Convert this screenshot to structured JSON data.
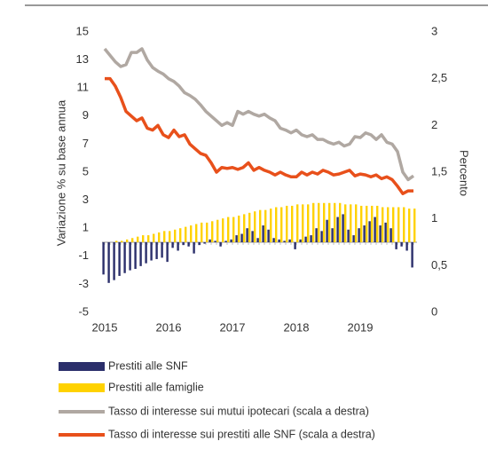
{
  "chart_data": {
    "type": "bar",
    "y_label": "Variazione % su base annua",
    "y2_label": "Percento",
    "categories": [
      "2015",
      null,
      null,
      null,
      null,
      null,
      null,
      null,
      null,
      null,
      null,
      null,
      "2016",
      null,
      null,
      null,
      null,
      null,
      null,
      null,
      null,
      null,
      null,
      null,
      "2017",
      null,
      null,
      null,
      null,
      null,
      null,
      null,
      null,
      null,
      null,
      null,
      "2018",
      null,
      null,
      null,
      null,
      null,
      null,
      null,
      null,
      null,
      null,
      null,
      "2019",
      null,
      null,
      null,
      null,
      null,
      null,
      null,
      null,
      null,
      null
    ],
    "ylim": [
      -5,
      15
    ],
    "yticks": [
      -5,
      -3,
      -1,
      1,
      3,
      5,
      7,
      9,
      11,
      13,
      15
    ],
    "y2lim": [
      0,
      3
    ],
    "y2ticks": [
      0,
      {
        "value": 0.5,
        "label": "0,5"
      },
      1,
      {
        "value": 1.5,
        "label": "1,5"
      },
      2,
      {
        "value": 2.5,
        "label": "2,5"
      },
      3
    ],
    "series": [
      {
        "name": "Prestiti alle SNF",
        "type": "bar",
        "color": "#2b2f6b",
        "values": [
          -2.3,
          -2.9,
          -2.7,
          -2.4,
          -2.2,
          -2.0,
          -1.9,
          -1.7,
          -1.5,
          -1.3,
          -1.2,
          -1.1,
          -1.4,
          -0.4,
          -0.6,
          -0.2,
          -0.3,
          -0.8,
          -0.2,
          -0.1,
          0.2,
          0.1,
          -0.3,
          0.1,
          0.2,
          0.5,
          0.6,
          1.0,
          0.8,
          0.3,
          1.2,
          0.9,
          0.3,
          0.2,
          0.1,
          0.2,
          -0.5,
          0.2,
          0.4,
          0.5,
          1.0,
          0.8,
          1.6,
          1.0,
          1.8,
          2.0,
          0.9,
          0.5,
          1.0,
          1.2,
          1.5,
          1.8,
          1.2,
          1.4,
          1.0,
          -0.5,
          -0.3,
          -0.6,
          -1.8
        ]
      },
      {
        "name": "Prestiti alle famiglie",
        "type": "bar",
        "color": "#ffd200",
        "values": [
          0,
          0,
          0.1,
          0.1,
          0.2,
          0.3,
          0.4,
          0.5,
          0.5,
          0.6,
          0.7,
          0.8,
          0.8,
          0.9,
          1.0,
          1.1,
          1.2,
          1.3,
          1.4,
          1.4,
          1.5,
          1.6,
          1.7,
          1.8,
          1.8,
          1.9,
          2.0,
          2.1,
          2.2,
          2.3,
          2.3,
          2.4,
          2.5,
          2.5,
          2.6,
          2.6,
          2.7,
          2.7,
          2.7,
          2.8,
          2.8,
          2.8,
          2.8,
          2.8,
          2.8,
          2.7,
          2.7,
          2.7,
          2.6,
          2.6,
          2.6,
          2.6,
          2.5,
          2.5,
          2.5,
          2.5,
          2.5,
          2.4,
          2.4
        ]
      },
      {
        "name": "Tasso di interesse sui mutui ipotecari (scala a destra)",
        "type": "line",
        "axis": "y2",
        "color": "#b0a8a2",
        "values": [
          2.82,
          2.75,
          2.68,
          2.63,
          2.65,
          2.78,
          2.78,
          2.82,
          2.7,
          2.62,
          2.58,
          2.55,
          2.5,
          2.47,
          2.42,
          2.35,
          2.32,
          2.28,
          2.22,
          2.15,
          2.1,
          2.05,
          2.0,
          2.03,
          2.0,
          2.15,
          2.12,
          2.15,
          2.12,
          2.1,
          2.12,
          2.08,
          2.05,
          1.97,
          1.95,
          1.92,
          1.95,
          1.9,
          1.88,
          1.9,
          1.85,
          1.85,
          1.82,
          1.8,
          1.82,
          1.78,
          1.8,
          1.88,
          1.87,
          1.92,
          1.9,
          1.85,
          1.9,
          1.82,
          1.8,
          1.72,
          1.5,
          1.42,
          1.46
        ]
      },
      {
        "name": "Tasso di interesse sui prestiti alle SNF (scala a destra)",
        "type": "line",
        "axis": "y2",
        "color": "#e8501b",
        "values": [
          2.5,
          2.5,
          2.42,
          2.3,
          2.15,
          2.1,
          2.05,
          2.08,
          1.97,
          1.95,
          2.0,
          1.9,
          1.87,
          1.95,
          1.88,
          1.9,
          1.8,
          1.75,
          1.7,
          1.68,
          1.6,
          1.5,
          1.55,
          1.54,
          1.55,
          1.53,
          1.55,
          1.6,
          1.52,
          1.55,
          1.52,
          1.5,
          1.47,
          1.5,
          1.47,
          1.45,
          1.45,
          1.5,
          1.47,
          1.5,
          1.48,
          1.52,
          1.5,
          1.47,
          1.48,
          1.5,
          1.52,
          1.46,
          1.48,
          1.47,
          1.45,
          1.47,
          1.43,
          1.45,
          1.42,
          1.35,
          1.27,
          1.3,
          1.3
        ]
      }
    ]
  }
}
